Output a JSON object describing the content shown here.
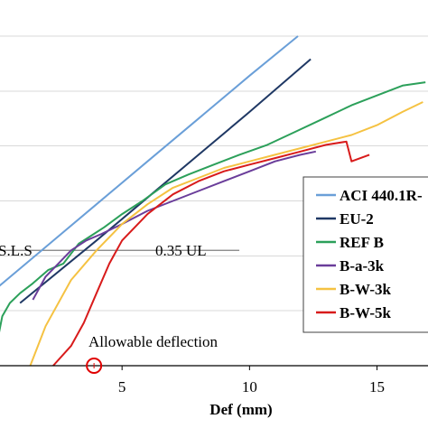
{
  "chart_data": {
    "type": "line",
    "xlabel": "Def (mm)",
    "ylabel": "",
    "xlim": [
      0,
      17
    ],
    "ylim": [
      0,
      1.0
    ],
    "x_ticks": [
      5,
      10,
      15
    ],
    "grid": {
      "horizontal": true,
      "vertical": false
    },
    "legend_position": "right",
    "annotations": [
      {
        "text": "S.L.S"
      },
      {
        "text": "0.35 UL"
      },
      {
        "text": "Allowable deflection"
      }
    ],
    "reference_line": {
      "label": "0.35 UL",
      "y": 0.35,
      "x_end": 9.6
    },
    "allowable_deflection_marker": {
      "x": 3.9,
      "y": 0.0,
      "color": "#e00000"
    },
    "series": [
      {
        "name": "ACI 440.1R-",
        "color": "#6a9fd8",
        "x": [
          0,
          2,
          4,
          6,
          8,
          10,
          11.9
        ],
        "y": [
          0.23,
          0.36,
          0.49,
          0.62,
          0.75,
          0.88,
          1.0
        ]
      },
      {
        "name": "EU-2",
        "color": "#1f3864",
        "x": [
          1.0,
          4,
          6,
          8,
          10,
          12.4
        ],
        "y": [
          0.19,
          0.38,
          0.51,
          0.64,
          0.77,
          0.93
        ]
      },
      {
        "name": "REF B",
        "color": "#2ca05a",
        "x": [
          0.1,
          0.3,
          0.6,
          1.0,
          1.5,
          2.1,
          2.7,
          3.0,
          3.3,
          3.7,
          4.3,
          5.0,
          5.8,
          6.7,
          7.6,
          8.6,
          9.6,
          10.7,
          11.8,
          12.9,
          14.0,
          15.0,
          16.0,
          16.9
        ],
        "y": [
          0.07,
          0.15,
          0.19,
          0.22,
          0.25,
          0.29,
          0.31,
          0.34,
          0.37,
          0.39,
          0.42,
          0.46,
          0.5,
          0.55,
          0.58,
          0.61,
          0.64,
          0.67,
          0.71,
          0.75,
          0.79,
          0.82,
          0.85,
          0.86
        ]
      },
      {
        "name": "B-a-3k",
        "color": "#6a3d9a",
        "x": [
          1.5,
          2.0,
          2.5,
          3.0,
          3.6,
          4.2,
          5.0,
          6.0,
          7.0,
          8.0,
          9.0,
          10.0,
          11.0,
          12.0,
          12.6
        ],
        "y": [
          0.2,
          0.27,
          0.31,
          0.35,
          0.38,
          0.4,
          0.43,
          0.47,
          0.5,
          0.53,
          0.56,
          0.59,
          0.62,
          0.64,
          0.65
        ]
      },
      {
        "name": "B-W-3k",
        "color": "#f5c242",
        "x": [
          1.4,
          2.0,
          3.0,
          4.0,
          5.0,
          6.0,
          7.0,
          8.0,
          9.0,
          10.0,
          11.0,
          12.0,
          13.0,
          14.0,
          15.0,
          16.0,
          16.8
        ],
        "y": [
          0.0,
          0.12,
          0.26,
          0.35,
          0.43,
          0.49,
          0.54,
          0.57,
          0.6,
          0.62,
          0.64,
          0.66,
          0.68,
          0.7,
          0.73,
          0.77,
          0.8
        ]
      },
      {
        "name": "B-W-5k",
        "color": "#d81b1b",
        "x": [
          2.3,
          3.0,
          3.5,
          4.0,
          4.5,
          5.0,
          6.0,
          7.0,
          8.0,
          9.0,
          10.0,
          11.0,
          12.0,
          13.0,
          13.8,
          14.0,
          14.7
        ],
        "y": [
          0.0,
          0.06,
          0.13,
          0.22,
          0.31,
          0.38,
          0.46,
          0.52,
          0.56,
          0.59,
          0.61,
          0.63,
          0.65,
          0.67,
          0.68,
          0.62,
          0.64
        ]
      }
    ]
  }
}
